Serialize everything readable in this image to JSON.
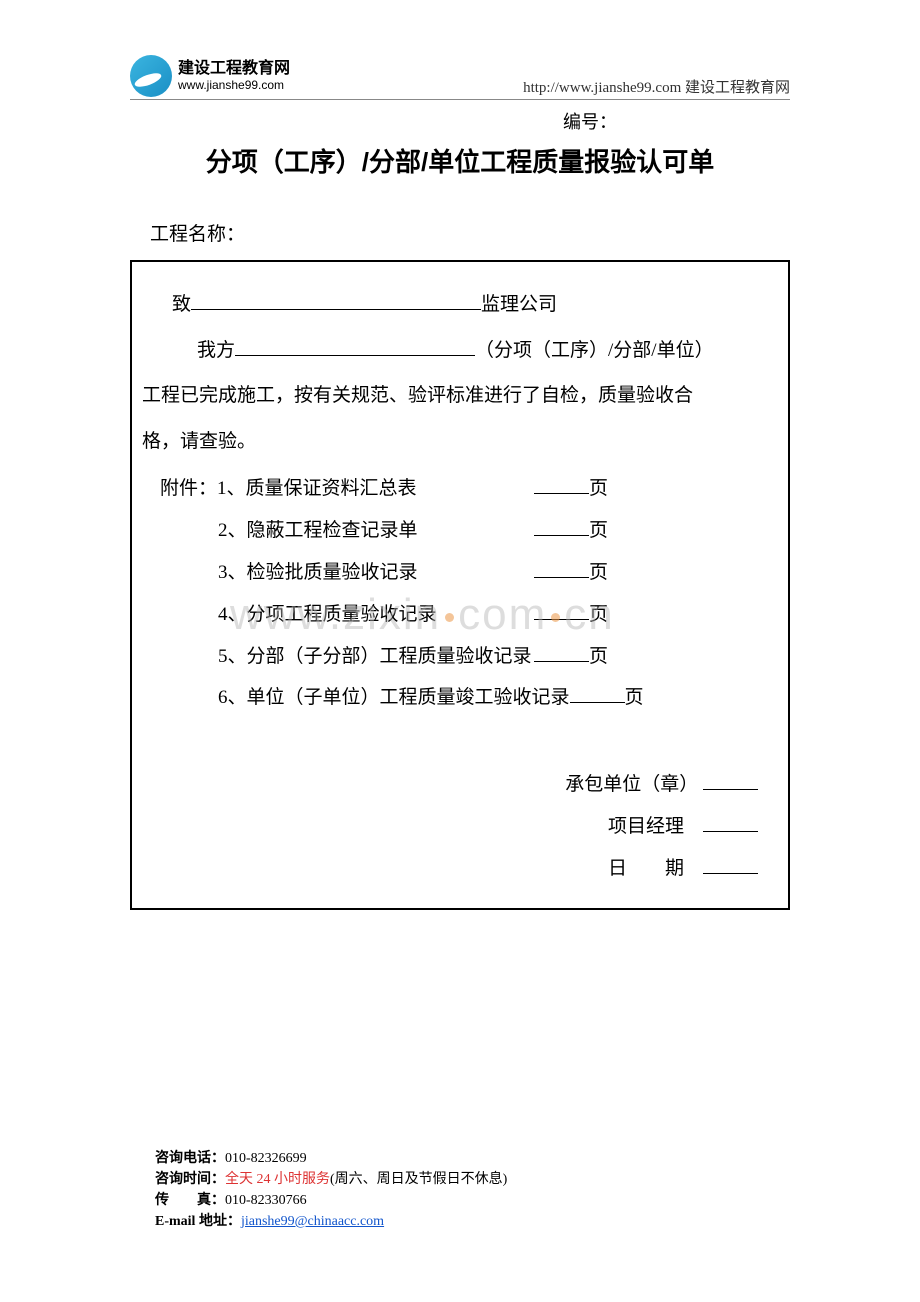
{
  "header": {
    "logo_cn": "建设工程教育网",
    "logo_url": "www.jianshe99.com",
    "right_text": "http://www.jianshe99.com  建设工程教育网"
  },
  "serial_label": "编号：",
  "title": "分项（工序）/分部/单位工程质量报验认可单",
  "project_label": "工程名称：",
  "form": {
    "to_prefix": "致",
    "to_suffix": "监理公司",
    "we_prefix": "我方",
    "we_suffix": "（分项（工序）/分部/单位）",
    "body_line1": "工程已完成施工，按有关规范、验评标准进行了自检，质量验收合",
    "body_line2": "格，请查验。",
    "attach_label": "附件：",
    "attachments": [
      {
        "num": "1、",
        "text": "质量保证资料汇总表",
        "unit": "页"
      },
      {
        "num": "2、",
        "text": "隐蔽工程检查记录单",
        "unit": "页"
      },
      {
        "num": "3、",
        "text": "检验批质量验收记录",
        "unit": "页"
      },
      {
        "num": "4、",
        "text": "分项工程质量验收记录",
        "unit": "页"
      },
      {
        "num": "5、",
        "text": "分部（子分部）工程质量验收记录",
        "unit": "页"
      },
      {
        "num": "6、",
        "text": "单位（子单位）工程质量竣工验收记录",
        "unit": "页"
      }
    ],
    "sig_contractor": "承包单位（章）",
    "sig_pm": "项目经理",
    "sig_date_a": "日",
    "sig_date_b": "期"
  },
  "watermark": "www.zixin.com.cn",
  "footer": {
    "phone_label": "咨询电话：",
    "phone_value": "010-82326699",
    "time_label": "咨询时间：",
    "time_red": "全天 24 小时服务",
    "time_rest": "(周六、周日及节假日不休息)",
    "fax_label": "传　　真：",
    "fax_value": "010-82330766",
    "email_label": "E-mail 地址：",
    "email_value": "jianshe99@chinaacc.com"
  }
}
